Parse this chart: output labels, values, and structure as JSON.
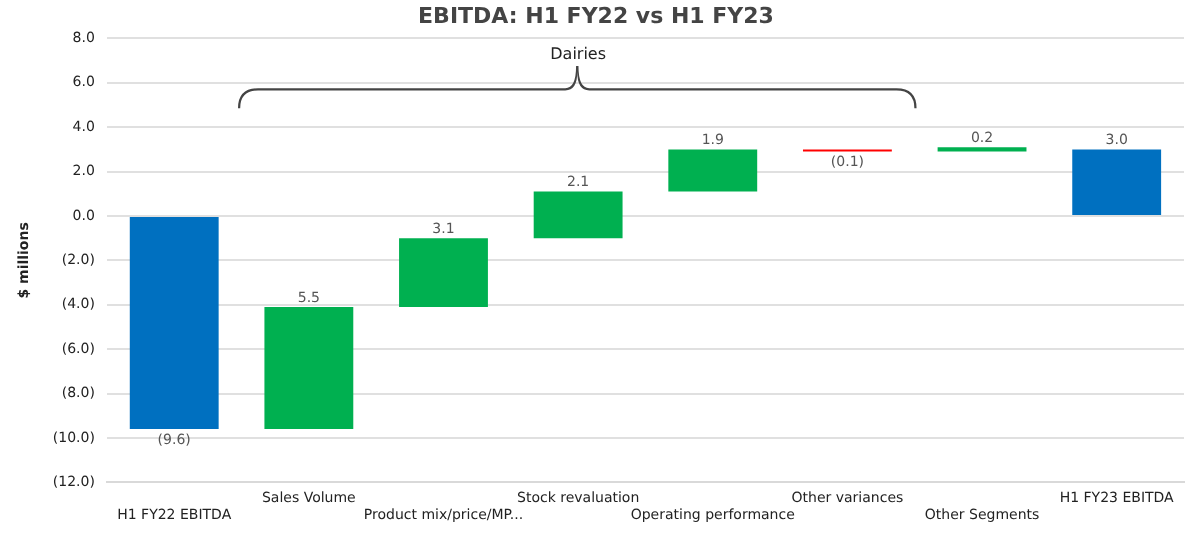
{
  "chart_data": {
    "type": "bar",
    "title": "EBITDA: H1 FY22 vs H1 FY23",
    "ylabel": "$ millions",
    "categories": [
      "H1 FY22 EBITDA",
      "Sales Volume",
      "Product mix/price/MP...",
      "Stock revaluation",
      "Operating performance",
      "Other variances",
      "Other Segments",
      "H1 FY23 EBITDA"
    ],
    "values": [
      -9.6,
      5.5,
      3.1,
      2.1,
      1.9,
      -0.1,
      0.2,
      3.0
    ],
    "base": [
      0,
      -9.6,
      -4.1,
      -1.0,
      1.1,
      3.0,
      2.9,
      0
    ],
    "colors": [
      "#0070c0",
      "#00b050",
      "#00b050",
      "#00b050",
      "#00b050",
      "#ff0000",
      "#00b050",
      "#0070c0"
    ],
    "value_labels": [
      "(9.6)",
      "5.5",
      "3.1",
      "2.1",
      "1.9",
      "(0.1)",
      "0.2",
      "3.0"
    ],
    "annotations": [
      "Dairies"
    ],
    "ylim": [
      -12,
      8
    ],
    "yticks": [
      {
        "value": -12,
        "label": "(12.0)"
      },
      {
        "value": -10,
        "label": "(10.0)"
      },
      {
        "value": -8,
        "label": "(8.0)"
      },
      {
        "value": -6,
        "label": "(6.0)"
      },
      {
        "value": -4,
        "label": "(4.0)"
      },
      {
        "value": -2,
        "label": "(2.0)"
      },
      {
        "value": 0,
        "label": "0.0"
      },
      {
        "value": 2,
        "label": "2.0"
      },
      {
        "value": 4,
        "label": "4.0"
      },
      {
        "value": 6,
        "label": "6.0"
      },
      {
        "value": 8,
        "label": "8.0"
      }
    ],
    "grid": "y",
    "legend": false
  }
}
